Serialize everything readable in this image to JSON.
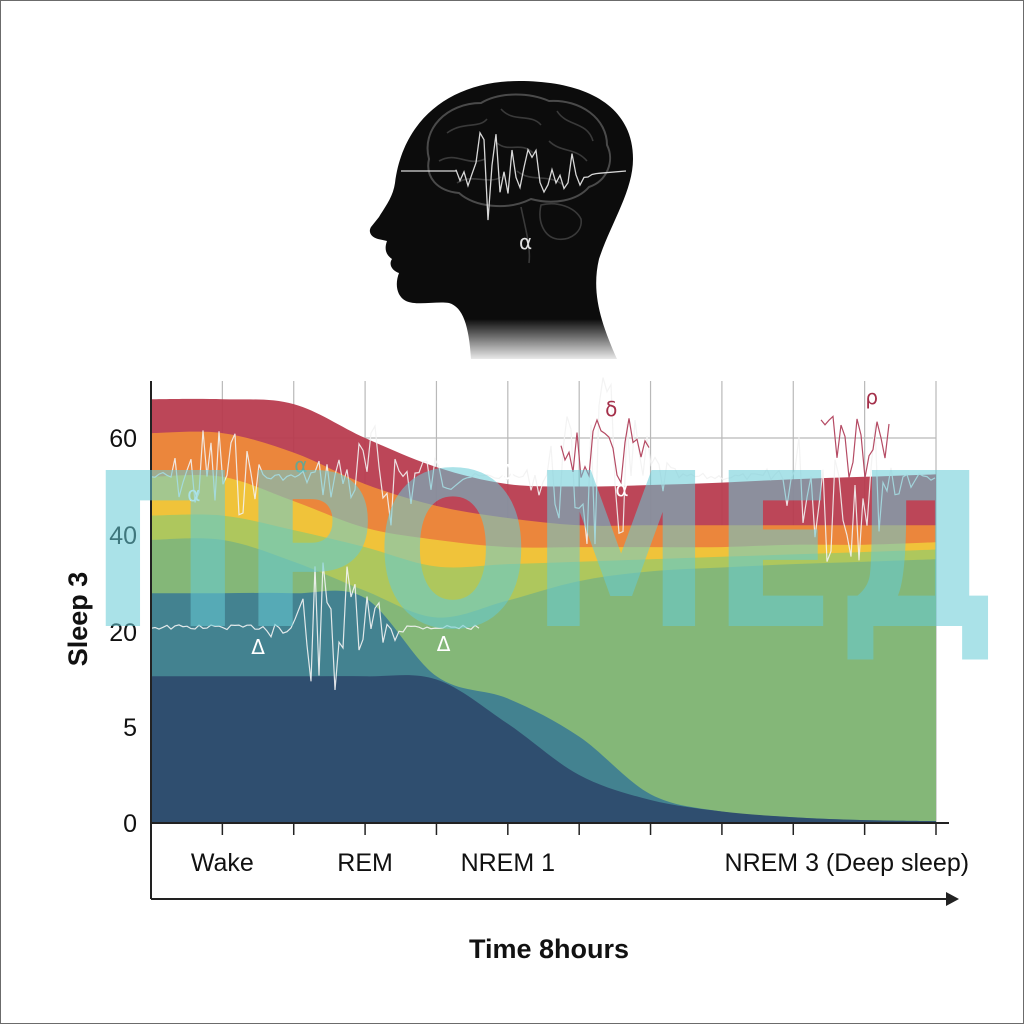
{
  "chart_data": {
    "type": "area",
    "ylabel": "Sleep 3",
    "xlabel": "Time 8hours",
    "yticks": [
      {
        "label": "0",
        "value": 0
      },
      {
        "label": "5",
        "value": 5
      },
      {
        "label": "20",
        "value": 20
      },
      {
        "label": "40",
        "value": 40
      },
      {
        "label": "60",
        "value": 60
      }
    ],
    "ylim": [
      0,
      70
    ],
    "x": [
      0,
      1,
      2,
      3,
      4,
      5,
      6,
      7,
      8,
      9,
      10,
      11
    ],
    "xlim": [
      0,
      11
    ],
    "category_labels": [
      {
        "label": "Wake",
        "x": 1
      },
      {
        "label": "REM",
        "x": 3
      },
      {
        "label": "NREM 1",
        "x": 5
      },
      {
        "label": "NREM 3 (Deep sleep)",
        "x": 9.75
      }
    ],
    "grid": true,
    "bands": [
      {
        "color": "#2e4a6c",
        "top": [
          13,
          13,
          13,
          13,
          12.5,
          5.5,
          2.5,
          1.2,
          0.6,
          0.3,
          0.15,
          0.1
        ]
      },
      {
        "color": "#3f7e92",
        "top": [
          28,
          28,
          28,
          27,
          13,
          9.5,
          4.5,
          1.5,
          0.6,
          0.3,
          0.15,
          0.1
        ]
      },
      {
        "color": "#82b67a",
        "top": [
          39,
          39,
          34.5,
          28.5,
          23,
          26.5,
          30.5,
          32.5,
          33.3,
          34,
          34.5,
          35
        ]
      },
      {
        "color": "#a9c760",
        "top": [
          44,
          44,
          41,
          37.5,
          33.5,
          34,
          34.5,
          35,
          35.5,
          36,
          36.5,
          37
        ]
      },
      {
        "color": "#f0c73a",
        "top": [
          52,
          52,
          47,
          41.5,
          39,
          37.5,
          37.5,
          37.5,
          37.5,
          38,
          38,
          38.5
        ]
      },
      {
        "color": "#ee8a3a",
        "top": [
          61,
          61,
          57,
          50.5,
          46,
          43.5,
          42,
          42,
          42,
          42,
          42,
          42
        ]
      },
      {
        "color": "#b83a4e",
        "top": [
          68,
          68,
          67,
          60,
          54,
          50.5,
          50,
          50.3,
          50.8,
          51.5,
          52,
          52.5
        ]
      }
    ],
    "symbols": [
      {
        "text": "α",
        "x": 0.6,
        "y": 47,
        "color": "#ffffff"
      },
      {
        "text": "α",
        "x": 2.1,
        "y": 53,
        "color": "#6aa58f"
      },
      {
        "text": "Δ",
        "x": 1.5,
        "y": 16.5,
        "color": "#ffffff"
      },
      {
        "text": "Δ",
        "x": 4.1,
        "y": 17,
        "color": "#ffffff"
      },
      {
        "text": "Δ",
        "x": 5.0,
        "y": 51.5,
        "color": "#ffffff"
      },
      {
        "text": "δ",
        "x": 6.45,
        "y": 64.5,
        "color": "#a4304a"
      },
      {
        "text": "α",
        "x": 6.6,
        "y": 48,
        "color": "#ffffff"
      },
      {
        "text": "ρ",
        "x": 10.1,
        "y": 67,
        "color": "#a4304a"
      }
    ],
    "wave_baselines": [
      52,
      21
    ]
  },
  "head": {
    "symbol": "α"
  },
  "watermark": {
    "text": "ПРОМЕД",
    "color": "#66cbd6"
  }
}
